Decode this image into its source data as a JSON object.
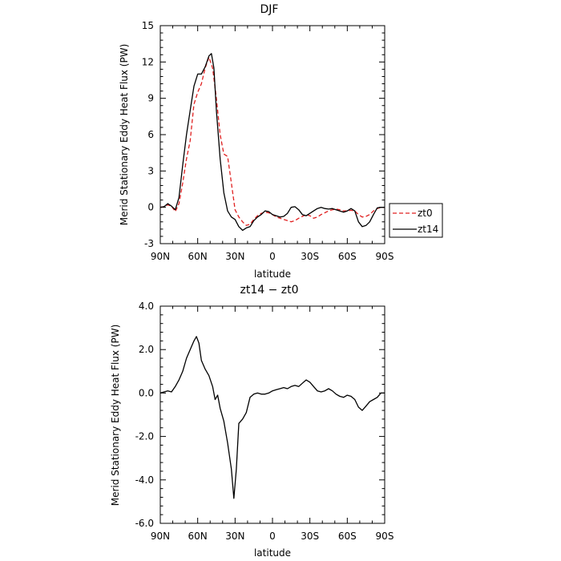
{
  "chart_data": [
    {
      "type": "line",
      "title": "DJF",
      "xlabel": "latitude",
      "ylabel": "Merid Stationary Eddy Heat Flux (PW)",
      "xlim": [
        90,
        -90
      ],
      "ylim": [
        -3,
        15
      ],
      "x_ticks": [
        90,
        60,
        30,
        0,
        -30,
        -60,
        -90
      ],
      "x_tick_labels": [
        "90N",
        "60N",
        "30N",
        "0",
        "30S",
        "60S",
        "90S"
      ],
      "y_ticks": [
        -3,
        0,
        3,
        6,
        9,
        12,
        15
      ],
      "y_tick_labels": [
        "-3",
        "0",
        "3",
        "6",
        "9",
        "12",
        "15"
      ],
      "grid": false,
      "legend_position": "outside-right",
      "series": [
        {
          "name": "zt0",
          "color": "#e02020",
          "dash": "dashed",
          "points": [
            [
              90,
              0
            ],
            [
              87,
              0.05
            ],
            [
              84,
              0.2
            ],
            [
              81,
              0.1
            ],
            [
              78,
              -0.35
            ],
            [
              75,
              0.3
            ],
            [
              72,
              2.0
            ],
            [
              69,
              4.0
            ],
            [
              66,
              5.5
            ],
            [
              63,
              8.5
            ],
            [
              60,
              9.5
            ],
            [
              57,
              10.2
            ],
            [
              54,
              11.5
            ],
            [
              51,
              12.4
            ],
            [
              48,
              11.5
            ],
            [
              45,
              9.0
            ],
            [
              42,
              6.0
            ],
            [
              39,
              4.4
            ],
            [
              36,
              4.2
            ],
            [
              33,
              2.0
            ],
            [
              30,
              -0.2
            ],
            [
              27,
              -0.8
            ],
            [
              24,
              -1.2
            ],
            [
              21,
              -1.5
            ],
            [
              18,
              -1.4
            ],
            [
              15,
              -1.0
            ],
            [
              12,
              -0.7
            ],
            [
              9,
              -0.5
            ],
            [
              6,
              -0.4
            ],
            [
              3,
              -0.45
            ],
            [
              0,
              -0.6
            ],
            [
              -3,
              -0.8
            ],
            [
              -6,
              -0.9
            ],
            [
              -9,
              -1.0
            ],
            [
              -12,
              -1.1
            ],
            [
              -15,
              -1.2
            ],
            [
              -18,
              -1.1
            ],
            [
              -21,
              -0.9
            ],
            [
              -24,
              -0.75
            ],
            [
              -27,
              -0.6
            ],
            [
              -30,
              -0.7
            ],
            [
              -33,
              -0.9
            ],
            [
              -36,
              -0.8
            ],
            [
              -39,
              -0.6
            ],
            [
              -42,
              -0.45
            ],
            [
              -45,
              -0.3
            ],
            [
              -48,
              -0.2
            ],
            [
              -51,
              -0.15
            ],
            [
              -54,
              -0.2
            ],
            [
              -57,
              -0.3
            ],
            [
              -60,
              -0.3
            ],
            [
              -63,
              -0.25
            ],
            [
              -66,
              -0.3
            ],
            [
              -69,
              -0.6
            ],
            [
              -72,
              -0.8
            ],
            [
              -75,
              -0.75
            ],
            [
              -78,
              -0.6
            ],
            [
              -81,
              -0.3
            ],
            [
              -84,
              -0.1
            ],
            [
              -87,
              0
            ],
            [
              -90,
              0
            ]
          ]
        },
        {
          "name": "zt14",
          "color": "#000000",
          "dash": "solid",
          "points": [
            [
              90,
              0
            ],
            [
              87,
              0.05
            ],
            [
              84,
              0.3
            ],
            [
              81,
              0.1
            ],
            [
              78,
              -0.2
            ],
            [
              75,
              0.8
            ],
            [
              72,
              3.5
            ],
            [
              69,
              6.0
            ],
            [
              66,
              8.0
            ],
            [
              63,
              10.0
            ],
            [
              60,
              11.0
            ],
            [
              57,
              11.0
            ],
            [
              54,
              11.6
            ],
            [
              51,
              12.5
            ],
            [
              49,
              12.7
            ],
            [
              47,
              11.5
            ],
            [
              45,
              8.0
            ],
            [
              42,
              4.0
            ],
            [
              39,
              1.2
            ],
            [
              36,
              -0.3
            ],
            [
              33,
              -0.8
            ],
            [
              30,
              -1.0
            ],
            [
              27,
              -1.6
            ],
            [
              24,
              -1.9
            ],
            [
              21,
              -1.7
            ],
            [
              18,
              -1.6
            ],
            [
              15,
              -1.1
            ],
            [
              12,
              -0.8
            ],
            [
              9,
              -0.6
            ],
            [
              6,
              -0.3
            ],
            [
              3,
              -0.35
            ],
            [
              0,
              -0.6
            ],
            [
              -3,
              -0.7
            ],
            [
              -6,
              -0.8
            ],
            [
              -9,
              -0.75
            ],
            [
              -12,
              -0.5
            ],
            [
              -15,
              0
            ],
            [
              -18,
              0.05
            ],
            [
              -21,
              -0.2
            ],
            [
              -24,
              -0.6
            ],
            [
              -27,
              -0.7
            ],
            [
              -30,
              -0.5
            ],
            [
              -33,
              -0.3
            ],
            [
              -36,
              -0.1
            ],
            [
              -39,
              0.0
            ],
            [
              -42,
              -0.1
            ],
            [
              -45,
              -0.15
            ],
            [
              -48,
              -0.1
            ],
            [
              -51,
              -0.2
            ],
            [
              -54,
              -0.3
            ],
            [
              -57,
              -0.4
            ],
            [
              -60,
              -0.3
            ],
            [
              -63,
              -0.1
            ],
            [
              -66,
              -0.3
            ],
            [
              -69,
              -1.2
            ],
            [
              -72,
              -1.6
            ],
            [
              -75,
              -1.5
            ],
            [
              -78,
              -1.2
            ],
            [
              -81,
              -0.6
            ],
            [
              -84,
              -0.05
            ],
            [
              -87,
              0
            ],
            [
              -90,
              0
            ]
          ]
        }
      ]
    },
    {
      "type": "line",
      "title": "zt14 − zt0",
      "xlabel": "latitude",
      "ylabel": "Merid Stationary Eddy Heat Flux (PW)",
      "xlim": [
        90,
        -90
      ],
      "ylim": [
        -6,
        4
      ],
      "x_ticks": [
        90,
        60,
        30,
        0,
        -30,
        -60,
        -90
      ],
      "x_tick_labels": [
        "90N",
        "60N",
        "30N",
        "0",
        "30S",
        "60S",
        "90S"
      ],
      "y_ticks": [
        -6,
        -4,
        -2,
        0,
        2,
        4
      ],
      "y_tick_labels": [
        "-6.0",
        "-4.0",
        "-2.0",
        "0.0",
        "2.0",
        "4.0"
      ],
      "grid": false,
      "series": [
        {
          "color": "#000000",
          "dash": "solid",
          "points": [
            [
              90,
              0
            ],
            [
              87,
              0.05
            ],
            [
              84,
              0.1
            ],
            [
              81,
              0.05
            ],
            [
              78,
              0.3
            ],
            [
              75,
              0.6
            ],
            [
              72,
              1.0
            ],
            [
              69,
              1.6
            ],
            [
              66,
              2.0
            ],
            [
              63,
              2.4
            ],
            [
              61,
              2.6
            ],
            [
              59,
              2.3
            ],
            [
              57,
              1.5
            ],
            [
              54,
              1.1
            ],
            [
              51,
              0.8
            ],
            [
              48,
              0.3
            ],
            [
              46,
              -0.3
            ],
            [
              44,
              -0.1
            ],
            [
              42,
              -0.7
            ],
            [
              39,
              -1.3
            ],
            [
              36,
              -2.3
            ],
            [
              33,
              -3.5
            ],
            [
              31,
              -4.85
            ],
            [
              29,
              -3.5
            ],
            [
              27,
              -1.4
            ],
            [
              24,
              -1.2
            ],
            [
              21,
              -0.9
            ],
            [
              18,
              -0.2
            ],
            [
              15,
              -0.05
            ],
            [
              12,
              0.0
            ],
            [
              9,
              -0.05
            ],
            [
              6,
              -0.05
            ],
            [
              3,
              0.0
            ],
            [
              0,
              0.1
            ],
            [
              -3,
              0.15
            ],
            [
              -6,
              0.2
            ],
            [
              -9,
              0.25
            ],
            [
              -12,
              0.2
            ],
            [
              -15,
              0.3
            ],
            [
              -18,
              0.35
            ],
            [
              -21,
              0.3
            ],
            [
              -24,
              0.45
            ],
            [
              -27,
              0.6
            ],
            [
              -30,
              0.5
            ],
            [
              -33,
              0.3
            ],
            [
              -36,
              0.1
            ],
            [
              -39,
              0.05
            ],
            [
              -42,
              0.1
            ],
            [
              -45,
              0.2
            ],
            [
              -48,
              0.1
            ],
            [
              -51,
              -0.05
            ],
            [
              -54,
              -0.15
            ],
            [
              -57,
              -0.2
            ],
            [
              -60,
              -0.1
            ],
            [
              -63,
              -0.15
            ],
            [
              -66,
              -0.3
            ],
            [
              -69,
              -0.65
            ],
            [
              -72,
              -0.8
            ],
            [
              -75,
              -0.6
            ],
            [
              -78,
              -0.4
            ],
            [
              -81,
              -0.3
            ],
            [
              -84,
              -0.2
            ],
            [
              -87,
              0
            ],
            [
              -90,
              0
            ]
          ]
        }
      ]
    }
  ]
}
